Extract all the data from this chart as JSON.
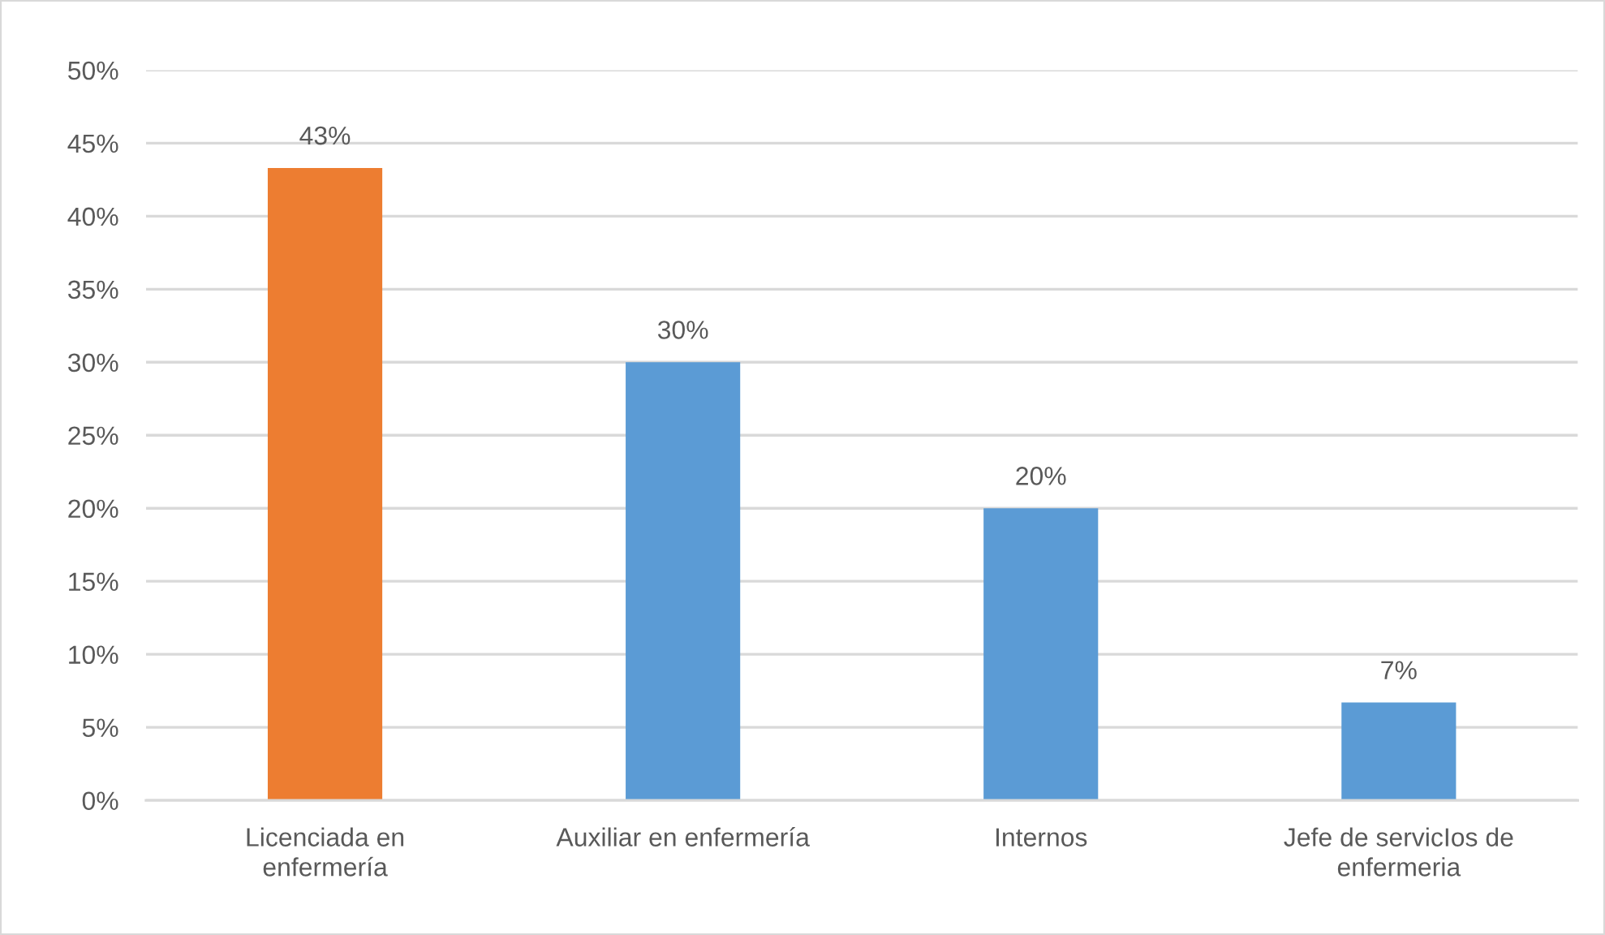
{
  "chart_data": {
    "type": "bar",
    "categories": [
      "Licenciada en\nenfermería",
      "Auxiliar en enfermería",
      "Internos",
      "Jefe de servicIos de\nenfermeria"
    ],
    "values": [
      43.3,
      30,
      20,
      6.7
    ],
    "colors": [
      "#ed7d31",
      "#5b9bd5",
      "#5b9bd5",
      "#5b9bd5"
    ],
    "value_labels": [
      "43%",
      "30%",
      "20%",
      "7%"
    ],
    "ylim": [
      0,
      50
    ],
    "yticks": [
      {
        "value": 0,
        "label": "0%"
      },
      {
        "value": 5,
        "label": "5%"
      },
      {
        "value": 10,
        "label": "10%"
      },
      {
        "value": 15,
        "label": "15%"
      },
      {
        "value": 20,
        "label": "20%"
      },
      {
        "value": 25,
        "label": "25%"
      },
      {
        "value": 30,
        "label": "30%"
      },
      {
        "value": 35,
        "label": "35%"
      },
      {
        "value": 40,
        "label": "40%"
      },
      {
        "value": 45,
        "label": "45%"
      },
      {
        "value": 50,
        "label": "50%"
      }
    ],
    "grid": "y"
  }
}
